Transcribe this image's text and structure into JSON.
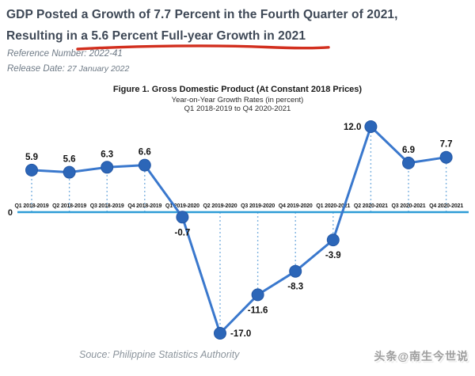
{
  "header": {
    "title_line1": "GDP Posted a Growth of 7.7 Percent in the Fourth Quarter of 2021,",
    "title_line2": "Resulting in a 5.6 Percent Full-year Growth in 2021",
    "underline_color": "#d22f1e",
    "reference_label": "Reference Number:",
    "reference_value": "2022-41",
    "release_label": "Release Date:",
    "release_value": "27 January 2022"
  },
  "chart_data": {
    "type": "line",
    "title": "Figure 1. Gross Domestic Product (At Constant 2018 Prices)",
    "subtitle1": "Year-on-Year Growth Rates (in percent)",
    "subtitle2": "Q1 2018-2019 to Q4 2020-2021",
    "categories": [
      "Q1 2018-2019",
      "Q2 2018-2019",
      "Q3 2018-2019",
      "Q4 2018-2019",
      "Q1 2019-2020",
      "Q2 2019-2020",
      "Q3 2019-2020",
      "Q4 2019-2020",
      "Q1 2020-2021",
      "Q2 2020-2021",
      "Q3 2020-2021",
      "Q4 2020-2021"
    ],
    "values": [
      5.9,
      5.6,
      6.3,
      6.6,
      -0.7,
      -17.0,
      -11.6,
      -8.3,
      -3.9,
      12.0,
      6.9,
      7.7
    ],
    "value_labels": [
      "5.9",
      "5.6",
      "6.3",
      "6.6",
      "-0.7",
      "-17.0",
      "-11.6",
      "-8.3",
      "-3.9",
      "12.0",
      "6.9",
      "7.7"
    ],
    "label_positions": [
      "above",
      "above",
      "above",
      "above",
      "below",
      "right",
      "below",
      "below",
      "below",
      "left",
      "above",
      "above"
    ],
    "zero_label": "0",
    "ylim": [
      -19,
      15
    ],
    "grid": "dotted vertical droplines from zero axis to each point",
    "legend": "none",
    "colors": {
      "line": "#3a78cd",
      "marker": "#2c66b8",
      "marker_stroke": "#2458a6",
      "axis": "#2e9cd6",
      "dropline": "#7fb3e0",
      "label": "#111111",
      "tick_label": "#1a1a1a"
    }
  },
  "footer": {
    "source": "Souce: Philippine Statistics Authority",
    "watermark": "头条@南生今世说"
  }
}
